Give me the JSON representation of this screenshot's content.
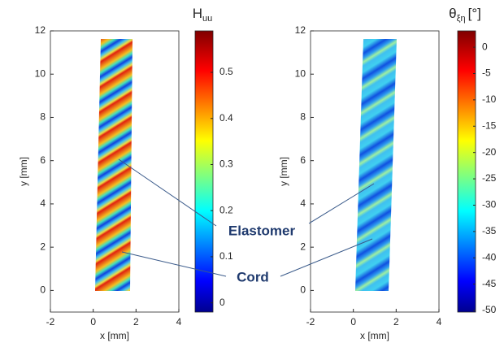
{
  "chart_data": [
    {
      "type": "heatmap",
      "xlabel": "x [mm]",
      "ylabel": "y [mm]",
      "xlim": [
        -2,
        4
      ],
      "xticks": [
        -2,
        0,
        2,
        4
      ],
      "ylim": [
        -1,
        12
      ],
      "yticks": [
        0,
        2,
        4,
        6,
        8,
        10,
        12
      ],
      "colorbar": {
        "title": "H",
        "title_sub": "uu",
        "suffix": null,
        "lim": [
          -0.02,
          0.59
        ],
        "ticks": [
          0,
          0.1,
          0.2,
          0.3,
          0.4,
          0.5
        ]
      }
    },
    {
      "type": "heatmap",
      "xlabel": "x [mm]",
      "ylabel": "y [mm]",
      "xlim": [
        -2,
        4
      ],
      "xticks": [
        -2,
        0,
        2,
        4
      ],
      "ylim": [
        -1,
        12
      ],
      "yticks": [
        0,
        2,
        4,
        6,
        8,
        10,
        12
      ],
      "colorbar": {
        "title": "θ",
        "title_sub": "ξη",
        "suffix": "[°]",
        "lim": [
          -50.3,
          3.1
        ],
        "ticks": [
          0,
          -5,
          -10,
          -15,
          -20,
          -25,
          -30,
          -35,
          -40,
          -45,
          -50
        ]
      }
    }
  ],
  "annotations": [
    "Elastomer",
    "Cord"
  ]
}
